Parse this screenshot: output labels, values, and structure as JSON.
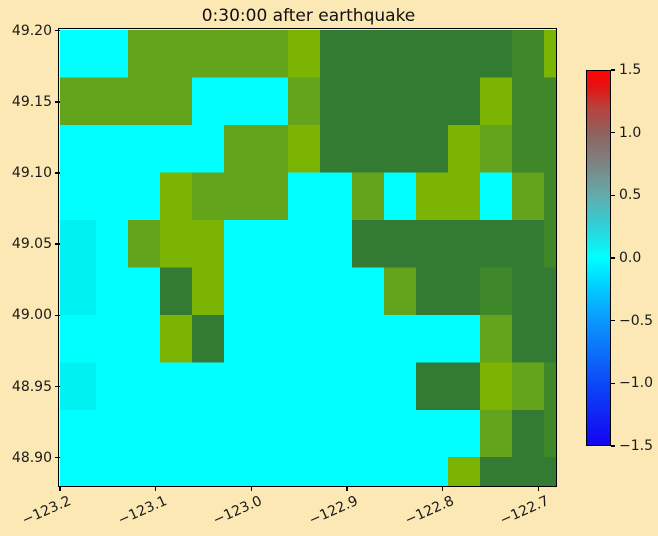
{
  "figure": {
    "background_color": "#fce8b4",
    "text_color": "#1a1a1a"
  },
  "chart_data": {
    "type": "heatmap",
    "title": "0:30:00 after earthquake",
    "x_axis": {
      "label": "",
      "tick_values": [
        -123.2,
        -123.1,
        -123.0,
        -122.9,
        -122.8,
        -122.7
      ],
      "tick_labels": [
        "−123.2",
        "−123.1",
        "−123.0",
        "−122.9",
        "−122.8",
        "−122.7"
      ],
      "range": [
        -123.2,
        -122.68
      ],
      "tick_rotation_deg": 24
    },
    "y_axis": {
      "label": "",
      "tick_values": [
        49.2,
        49.15,
        49.1,
        49.05,
        49.0,
        48.95,
        48.9
      ],
      "tick_labels": [
        "49.20",
        "49.15",
        "49.10",
        "49.05",
        "49.00",
        "48.95",
        "48.90"
      ],
      "range": [
        48.88,
        49.2005
      ]
    },
    "colorbar": {
      "min": -1.5,
      "max": 1.5,
      "tick_values": [
        1.5,
        1.0,
        0.5,
        0.0,
        -0.5,
        -1.0,
        -1.5
      ],
      "tick_labels": [
        "1.5",
        "1.0",
        "0.5",
        "0.0",
        "−0.5",
        "−1.0",
        "−1.5"
      ],
      "gradient_stops": [
        {
          "pos": 0.0,
          "color": "#fb0505"
        },
        {
          "pos": 0.04,
          "color": "#e51210"
        },
        {
          "pos": 0.1,
          "color": "#b8423c"
        },
        {
          "pos": 0.167,
          "color": "#8f625e"
        },
        {
          "pos": 0.25,
          "color": "#7b8583"
        },
        {
          "pos": 0.333,
          "color": "#63abac"
        },
        {
          "pos": 0.42,
          "color": "#2cd3da"
        },
        {
          "pos": 0.5,
          "color": "#00ffff"
        },
        {
          "pos": 0.58,
          "color": "#00ccff"
        },
        {
          "pos": 0.667,
          "color": "#0a98fc"
        },
        {
          "pos": 0.75,
          "color": "#0c70fa"
        },
        {
          "pos": 0.833,
          "color": "#0c49f8"
        },
        {
          "pos": 1.0,
          "color": "#1403f0"
        }
      ]
    },
    "grid": {
      "n_cols": 16,
      "n_rows": 10,
      "cell_size_deg": 0.0334,
      "lon_start": -123.2,
      "lat_start": 49.2005,
      "rows": [
        "CCmmmmmgddddddeg",
        "mmmmCCCmdddddgee",
        "CCCCCmmgddddgmee",
        "CCCgmmmCCmCggCme",
        "cCmggCCCCdddddde",
        "cCCdgCCCCCmddedd",
        "CCCgdCCCCCCCCmdd",
        "cCCCCCCCCCCddgme",
        "CCCCCCCCCCCCCmde",
        "CCCCCCCCCCCCgddd"
      ],
      "palette": {
        "C": "#00ffff",
        "c": "#00f1f1",
        "g": "#7cb404",
        "m": "#64a41c",
        "e": "#3f8829",
        "d": "#337b33"
      },
      "palette_meaning": {
        "C": "sea surface, elevation ~0",
        "c": "sea surface, slight variation",
        "g": "land, low elevation (bright olive)",
        "m": "land, mid elevation (olive green)",
        "e": "land, higher elevation (light forest green)",
        "d": "land, highest elevation (dark forest green)"
      }
    }
  }
}
